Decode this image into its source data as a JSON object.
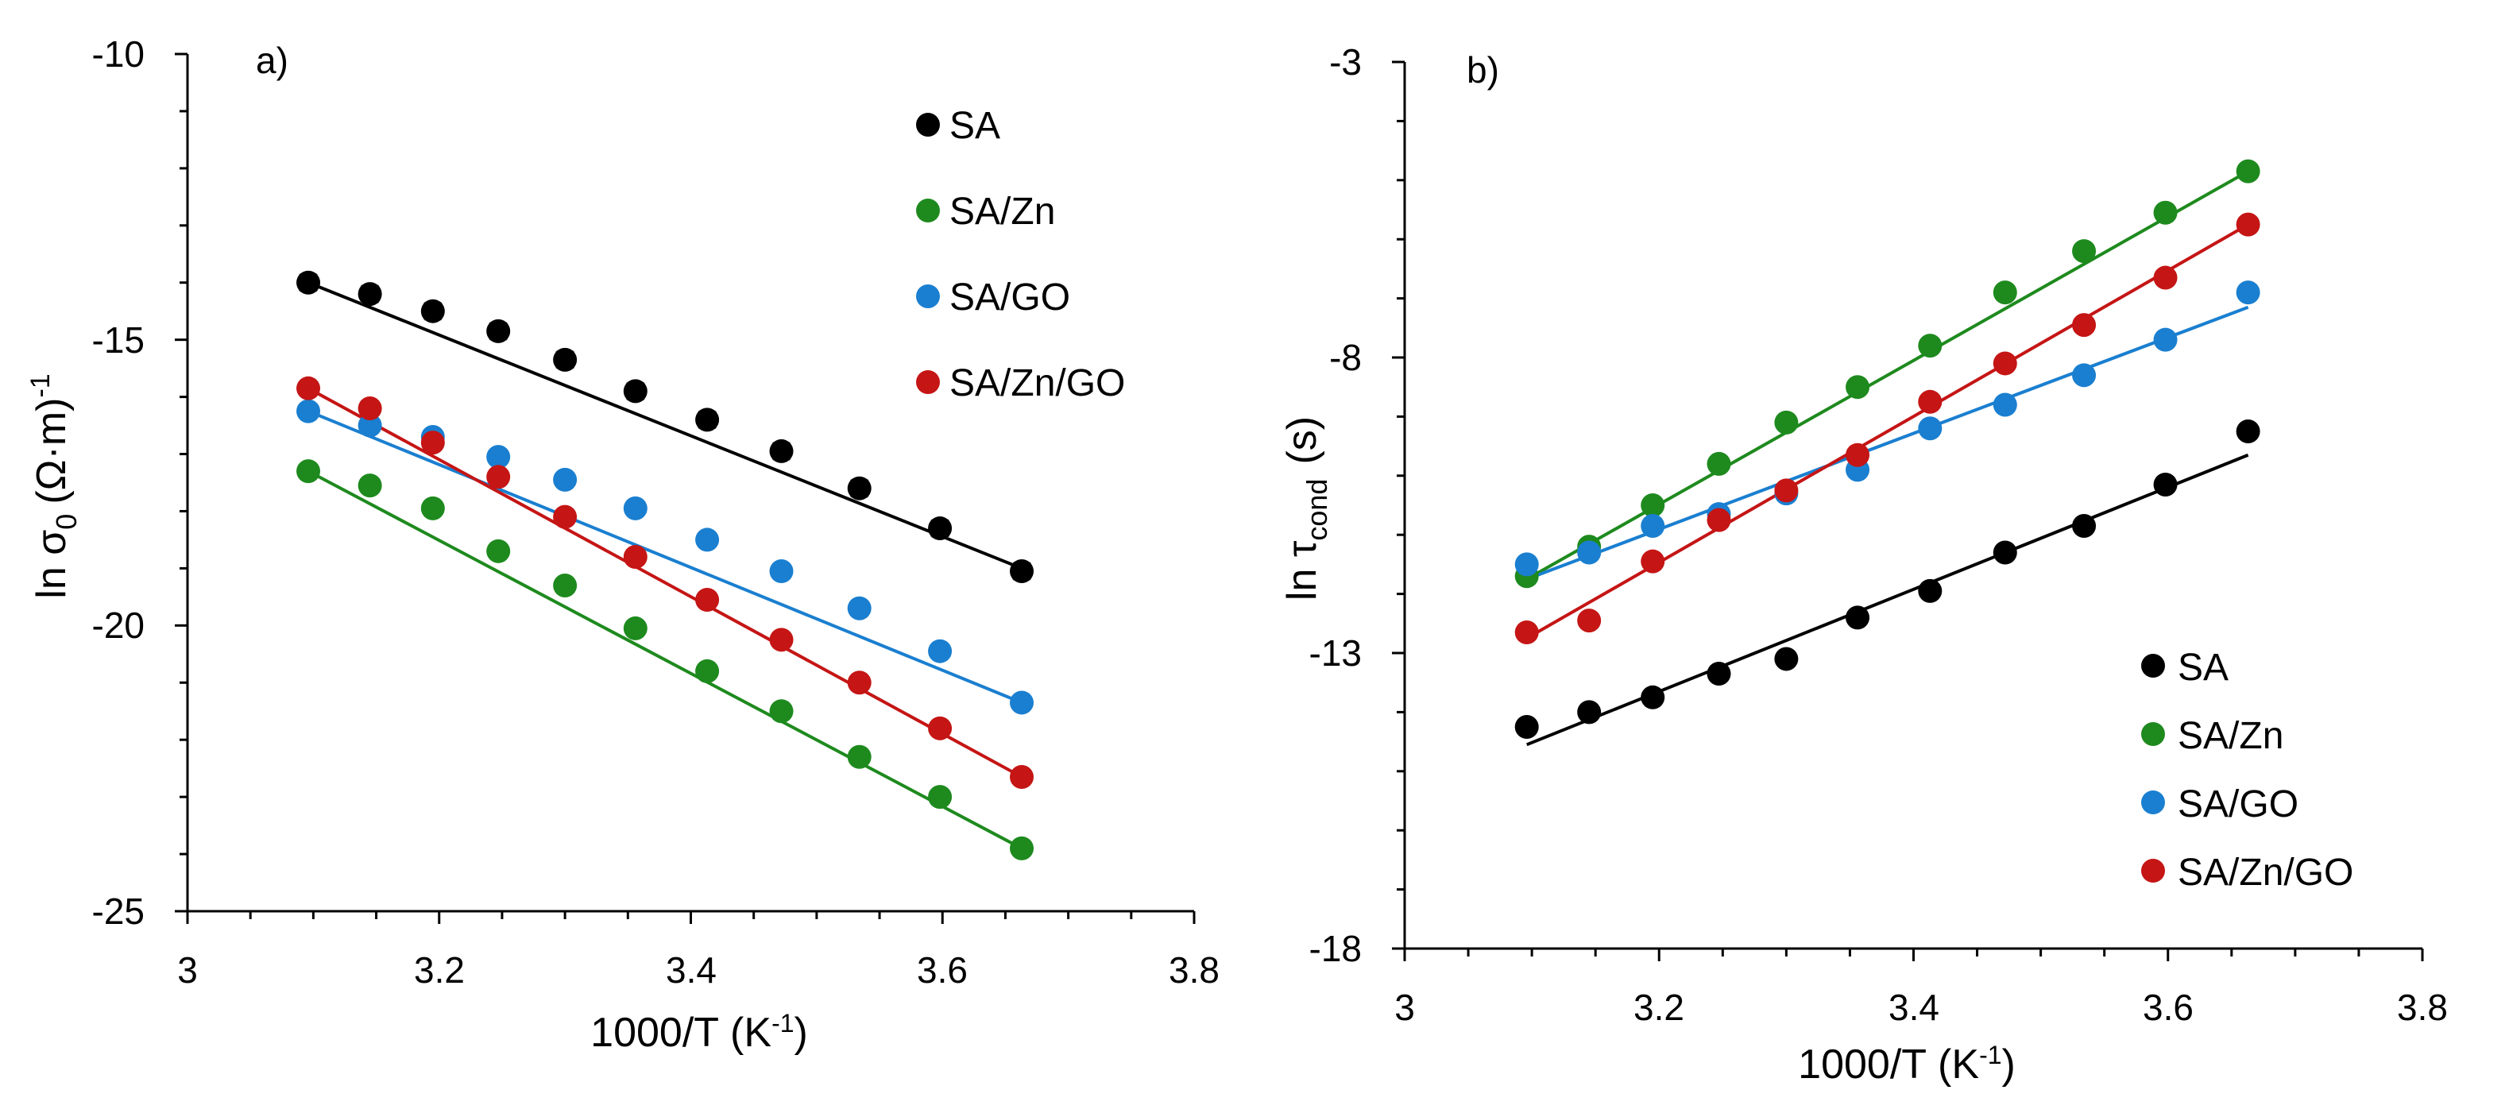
{
  "chart_data": [
    {
      "type": "scatter",
      "panel_label": "a)",
      "xlabel": "1000/T",
      "xlabel_unit": "K",
      "xlabel_unit_exp": "-1",
      "ylabel": "ln σ",
      "ylabel_sub": "0",
      "ylabel_unit": "(Ω·m)",
      "ylabel_unit_exp": "-1",
      "xlim": [
        3,
        3.8
      ],
      "ylim": [
        -25,
        -10
      ],
      "xticks": [
        "3",
        "3.2",
        "3.4",
        "3.6",
        "3.8"
      ],
      "yticks": [
        "-10",
        "-15",
        "-20",
        "-25"
      ],
      "legend_position": "top-right",
      "x": [
        3.096,
        3.145,
        3.195,
        3.247,
        3.3,
        3.356,
        3.413,
        3.472,
        3.534,
        3.598,
        3.663
      ],
      "series": [
        {
          "name": "SA",
          "color": "#000000",
          "values": [
            -14.0,
            -14.2,
            -14.5,
            -14.85,
            -15.35,
            -15.9,
            -16.4,
            -16.95,
            -17.6,
            -18.3,
            -19.05
          ],
          "fit": [
            -14.0,
            -19.0
          ]
        },
        {
          "name": "SA/Zn",
          "color": "#1e8a1e",
          "values": [
            -17.3,
            -17.55,
            -17.95,
            -18.7,
            -19.3,
            -20.05,
            -20.8,
            -21.5,
            -22.3,
            -23.0,
            -23.9
          ],
          "fit": [
            -17.3,
            -23.9
          ]
        },
        {
          "name": "SA/GO",
          "color": "#1a7fd0",
          "values": [
            -16.25,
            -16.5,
            -16.7,
            -17.05,
            -17.45,
            -17.95,
            -18.5,
            -19.05,
            -19.7,
            -20.45,
            -21.35
          ],
          "fit": [
            -16.25,
            -21.35
          ]
        },
        {
          "name": "SA/Zn/GO",
          "color": "#c51515",
          "values": [
            -15.85,
            -16.2,
            -16.8,
            -17.4,
            -18.1,
            -18.8,
            -19.55,
            -20.25,
            -21.0,
            -21.8,
            -22.65
          ],
          "fit": [
            -15.85,
            -22.65
          ]
        }
      ]
    },
    {
      "type": "scatter",
      "panel_label": "b)",
      "xlabel": "1000/T",
      "xlabel_unit": "K",
      "xlabel_unit_exp": "-1",
      "ylabel": "ln τ",
      "ylabel_sub": "cond",
      "ylabel_unit": "(s)",
      "xlim": [
        3,
        3.8
      ],
      "ylim": [
        -18,
        -3
      ],
      "xticks": [
        "3",
        "3.2",
        "3.4",
        "3.6",
        "3.8"
      ],
      "yticks": [
        "-3",
        "-8",
        "-13",
        "-18"
      ],
      "legend_position": "bottom-right",
      "x": [
        3.096,
        3.145,
        3.195,
        3.247,
        3.3,
        3.356,
        3.413,
        3.472,
        3.534,
        3.598,
        3.663
      ],
      "series": [
        {
          "name": "SA",
          "color": "#000000",
          "values": [
            -14.25,
            -14.0,
            -13.75,
            -13.35,
            -13.1,
            -12.4,
            -11.95,
            -11.3,
            -10.85,
            -10.15,
            -9.25
          ],
          "fit": [
            -14.55,
            -9.65
          ]
        },
        {
          "name": "SA/Zn",
          "color": "#1e8a1e",
          "values": [
            -11.7,
            -11.2,
            -10.5,
            -9.8,
            -9.1,
            -8.5,
            -7.8,
            -6.9,
            -6.2,
            -5.55,
            -4.85
          ],
          "fit": [
            -11.75,
            -4.85
          ]
        },
        {
          "name": "SA/GO",
          "color": "#1a7fd0",
          "values": [
            -11.5,
            -11.3,
            -10.85,
            -10.65,
            -10.3,
            -9.9,
            -9.2,
            -8.8,
            -8.3,
            -7.7,
            -6.9
          ],
          "fit": [
            -11.75,
            -7.15
          ]
        },
        {
          "name": "SA/Zn/GO",
          "color": "#c51515",
          "values": [
            -12.65,
            -12.45,
            -11.45,
            -10.75,
            -10.25,
            -9.65,
            -8.75,
            -8.1,
            -7.45,
            -6.65,
            -5.75
          ],
          "fit": [
            -12.75,
            -5.75
          ]
        }
      ]
    }
  ]
}
